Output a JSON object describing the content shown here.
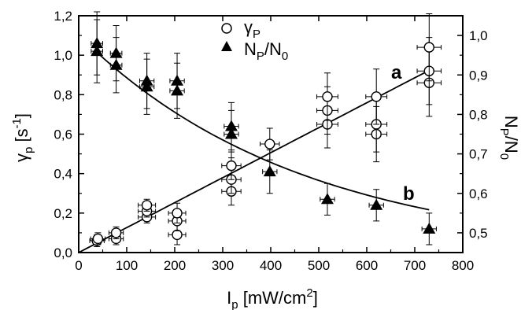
{
  "chart_data": {
    "type": "scatter",
    "x_axis": {
      "label_main": "I",
      "label_sub": "p",
      "label_rest": " [mW/cm",
      "label_sup": "2",
      "label_end": "]",
      "range": [
        0,
        800
      ],
      "ticks": [
        "0",
        "100",
        "200",
        "300",
        "400",
        "500",
        "600",
        "700",
        "800"
      ]
    },
    "y_left": {
      "label_main": "γ",
      "label_sub": "p",
      "label_rest": " [s",
      "label_sup": "-1",
      "label_end": "]",
      "range": [
        0.0,
        1.2
      ],
      "ticks": [
        "0,0",
        "0,2",
        "0,4",
        "0,6",
        "0,8",
        "1,0",
        "1,2"
      ]
    },
    "y_right": {
      "label_main": "N",
      "label_sub1": "P",
      "label_mid": "/N",
      "label_sub2": "0",
      "range": [
        0.45,
        1.05
      ],
      "ticks": [
        "0,5",
        "0,6",
        "0,7",
        "0,8",
        "0,9",
        "1,0"
      ]
    },
    "legend": {
      "placement": "top-center",
      "entries": [
        {
          "symbol": "open-circle",
          "text_main": "γ",
          "text_sub": "P"
        },
        {
          "symbol": "filled-triangle",
          "text_main": "N",
          "text_sub1": "P",
          "text_mid": "/N",
          "text_sub2": "0"
        }
      ]
    },
    "curve_labels": {
      "a": "a",
      "b": "b"
    },
    "series": [
      {
        "symbol": "open-circle",
        "axis": "left",
        "points": [
          {
            "x": 38,
            "y": 0.06,
            "ex": 15,
            "ey": 0.03
          },
          {
            "x": 40,
            "y": 0.07,
            "ex": 15,
            "ey": 0.03
          },
          {
            "x": 78,
            "y": 0.07,
            "ex": 15,
            "ey": 0.03
          },
          {
            "x": 78,
            "y": 0.1,
            "ex": 15,
            "ey": 0.03
          },
          {
            "x": 142,
            "y": 0.18,
            "ex": 18,
            "ey": 0.03
          },
          {
            "x": 142,
            "y": 0.21,
            "ex": 18,
            "ey": 0.03
          },
          {
            "x": 142,
            "y": 0.24,
            "ex": 18,
            "ey": 0.03
          },
          {
            "x": 205,
            "y": 0.09,
            "ex": 18,
            "ey": 0.05
          },
          {
            "x": 205,
            "y": 0.16,
            "ex": 18,
            "ey": 0.05
          },
          {
            "x": 205,
            "y": 0.2,
            "ex": 18,
            "ey": 0.05
          },
          {
            "x": 318,
            "y": 0.31,
            "ex": 20,
            "ey": 0.07
          },
          {
            "x": 318,
            "y": 0.37,
            "ex": 20,
            "ey": 0.07
          },
          {
            "x": 318,
            "y": 0.44,
            "ex": 20,
            "ey": 0.07
          },
          {
            "x": 398,
            "y": 0.55,
            "ex": 20,
            "ey": 0.08
          },
          {
            "x": 518,
            "y": 0.65,
            "ex": 22,
            "ey": 0.12
          },
          {
            "x": 518,
            "y": 0.72,
            "ex": 22,
            "ey": 0.12
          },
          {
            "x": 518,
            "y": 0.79,
            "ex": 22,
            "ey": 0.12
          },
          {
            "x": 620,
            "y": 0.6,
            "ex": 22,
            "ey": 0.14
          },
          {
            "x": 620,
            "y": 0.65,
            "ex": 22,
            "ey": 0.14
          },
          {
            "x": 620,
            "y": 0.79,
            "ex": 22,
            "ey": 0.14
          },
          {
            "x": 730,
            "y": 0.86,
            "ex": 25,
            "ey": 0.17
          },
          {
            "x": 730,
            "y": 0.92,
            "ex": 25,
            "ey": 0.17
          },
          {
            "x": 730,
            "y": 1.04,
            "ex": 25,
            "ey": 0.17
          }
        ]
      },
      {
        "symbol": "filled-triangle",
        "axis": "right",
        "points": [
          {
            "x": 38,
            "y": 0.98,
            "ex": 12,
            "ey": 0.08
          },
          {
            "x": 38,
            "y": 0.96,
            "ex": 12,
            "ey": 0.08
          },
          {
            "x": 78,
            "y": 0.955,
            "ex": 12,
            "ey": 0.07
          },
          {
            "x": 78,
            "y": 0.925,
            "ex": 12,
            "ey": 0.07
          },
          {
            "x": 142,
            "y": 0.885,
            "ex": 15,
            "ey": 0.07
          },
          {
            "x": 142,
            "y": 0.87,
            "ex": 15,
            "ey": 0.07
          },
          {
            "x": 205,
            "y": 0.885,
            "ex": 15,
            "ey": 0.07
          },
          {
            "x": 205,
            "y": 0.86,
            "ex": 15,
            "ey": 0.07
          },
          {
            "x": 318,
            "y": 0.77,
            "ex": 15,
            "ey": 0.06
          },
          {
            "x": 318,
            "y": 0.75,
            "ex": 15,
            "ey": 0.06
          },
          {
            "x": 398,
            "y": 0.655,
            "ex": 15,
            "ey": 0.055
          },
          {
            "x": 518,
            "y": 0.585,
            "ex": 15,
            "ey": 0.04
          },
          {
            "x": 620,
            "y": 0.57,
            "ex": 15,
            "ey": 0.04
          },
          {
            "x": 730,
            "y": 0.51,
            "ex": 15,
            "ey": 0.04
          }
        ]
      }
    ],
    "fit_lines": [
      {
        "axis": "left",
        "kind": "linear",
        "slope": 0.001265,
        "intercept": 0.0,
        "x_range": [
          0,
          730
        ]
      },
      {
        "axis": "right",
        "kind": "exponential",
        "c": 0.442,
        "a": 0.559,
        "k": 0.00215,
        "x_range": [
          38,
          730
        ]
      }
    ]
  }
}
